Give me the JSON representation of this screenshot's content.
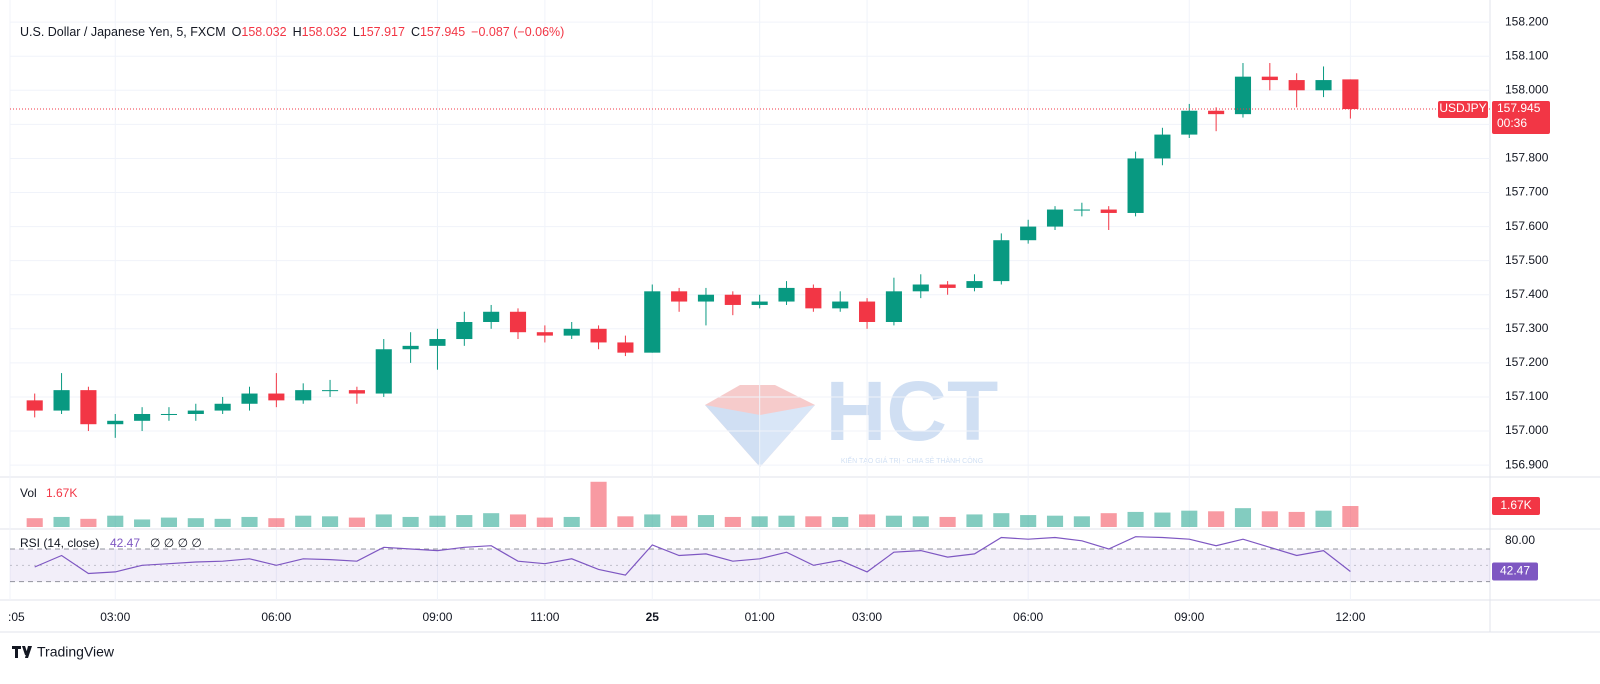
{
  "chart_data": [
    {
      "type": "candlestick",
      "title": "U.S. Dollar / Japanese Yen, 5, FXCM",
      "ohlc_legend": [
        {
          "key": "O",
          "value": "158.032"
        },
        {
          "key": "H",
          "value": "158.032"
        },
        {
          "key": "L",
          "value": "157.917"
        },
        {
          "key": "C",
          "value": "157.945"
        }
      ],
      "change": "−0.087 (−0.06%)",
      "price_label": {
        "symbol": "USDJPY",
        "price": "157.945",
        "countdown": "00:36"
      },
      "up_color": "#089981",
      "down_color": "#f23645",
      "grid": true,
      "x": [
        1.5,
        2,
        2.5,
        3,
        3.5,
        4,
        4.5,
        5,
        5.5,
        6,
        6.5,
        7,
        7.5,
        8,
        8.5,
        9,
        9.5,
        10,
        10.5,
        11,
        11.5,
        12,
        12.5,
        13,
        13.5,
        14,
        14.5,
        15,
        15.5,
        16,
        16.5,
        17,
        17.5,
        18,
        18.5,
        19,
        19.5,
        20,
        20.5,
        21,
        21.5,
        22,
        22.5,
        23,
        23.5,
        24,
        24.5,
        25,
        25.5,
        26
      ],
      "open": [
        157.09,
        157.06,
        157.12,
        157.02,
        157.03,
        157.05,
        157.05,
        157.06,
        157.08,
        157.11,
        157.09,
        157.12,
        157.12,
        157.11,
        157.24,
        157.25,
        157.27,
        157.32,
        157.35,
        157.29,
        157.28,
        157.3,
        157.26,
        157.23,
        157.41,
        157.38,
        157.4,
        157.37,
        157.38,
        157.42,
        157.36,
        157.38,
        157.32,
        157.41,
        157.43,
        157.42,
        157.44,
        157.56,
        157.6,
        157.65,
        157.65,
        157.64,
        157.8,
        157.87,
        157.94,
        157.93,
        158.04,
        158.03,
        158.0,
        158.032
      ],
      "high": [
        157.11,
        157.17,
        157.13,
        157.05,
        157.07,
        157.07,
        157.08,
        157.1,
        157.13,
        157.17,
        157.14,
        157.15,
        157.13,
        157.27,
        157.29,
        157.3,
        157.35,
        157.37,
        157.36,
        157.31,
        157.32,
        157.31,
        157.28,
        157.43,
        157.42,
        157.42,
        157.41,
        157.4,
        157.44,
        157.43,
        157.41,
        157.39,
        157.45,
        157.46,
        157.44,
        157.46,
        157.58,
        157.62,
        157.66,
        157.67,
        157.66,
        157.82,
        157.89,
        157.96,
        157.95,
        158.08,
        158.08,
        158.05,
        158.07,
        158.032
      ],
      "low": [
        157.04,
        157.05,
        157.0,
        156.98,
        157.0,
        157.03,
        157.03,
        157.05,
        157.06,
        157.07,
        157.08,
        157.1,
        157.08,
        157.1,
        157.2,
        157.18,
        157.25,
        157.3,
        157.27,
        157.26,
        157.27,
        157.24,
        157.22,
        157.23,
        157.35,
        157.31,
        157.34,
        157.36,
        157.37,
        157.35,
        157.35,
        157.3,
        157.31,
        157.39,
        157.4,
        157.41,
        157.43,
        157.55,
        157.59,
        157.63,
        157.59,
        157.63,
        157.78,
        157.86,
        157.88,
        157.92,
        158.0,
        157.95,
        157.98,
        157.917
      ],
      "close": [
        157.06,
        157.12,
        157.02,
        157.03,
        157.05,
        157.05,
        157.06,
        157.08,
        157.11,
        157.09,
        157.12,
        157.12,
        157.11,
        157.24,
        157.25,
        157.27,
        157.32,
        157.35,
        157.29,
        157.28,
        157.3,
        157.26,
        157.23,
        157.41,
        157.38,
        157.4,
        157.37,
        157.38,
        157.42,
        157.36,
        157.38,
        157.32,
        157.41,
        157.43,
        157.42,
        157.44,
        157.56,
        157.6,
        157.65,
        157.65,
        157.64,
        157.8,
        157.87,
        157.94,
        157.93,
        158.04,
        158.03,
        158.0,
        158.03,
        157.945
      ],
      "xlim": [
        1.04,
        28.6
      ],
      "xticks": [
        {
          "value": 1.04,
          "label": ":05"
        },
        {
          "value": 3,
          "label": "03:00"
        },
        {
          "value": 6,
          "label": "06:00"
        },
        {
          "value": 9,
          "label": "09:00"
        },
        {
          "value": 11,
          "label": "11:00"
        },
        {
          "value": 13,
          "label": "25"
        },
        {
          "value": 15,
          "label": "01:00"
        },
        {
          "value": 17,
          "label": "03:00"
        },
        {
          "value": 20,
          "label": "06:00"
        },
        {
          "value": 23,
          "label": "09:00"
        },
        {
          "value": 26,
          "label": "12:00"
        }
      ],
      "ylim": [
        156.868,
        158.265
      ],
      "yticks": [
        {
          "value": 156.9,
          "label": "156.900"
        },
        {
          "value": 157.0,
          "label": "157.000"
        },
        {
          "value": 157.1,
          "label": "157.100"
        },
        {
          "value": 157.2,
          "label": "157.200"
        },
        {
          "value": 157.3,
          "label": "157.300"
        },
        {
          "value": 157.4,
          "label": "157.400"
        },
        {
          "value": 157.5,
          "label": "157.500"
        },
        {
          "value": 157.6,
          "label": "157.600"
        },
        {
          "value": 157.7,
          "label": "157.700"
        },
        {
          "value": 157.8,
          "label": "157.800"
        },
        {
          "value": 157.9,
          "label": "157.900"
        },
        {
          "value": 158.0,
          "label": "158.000"
        },
        {
          "value": 158.1,
          "label": "158.100"
        },
        {
          "value": 158.2,
          "label": "158.200"
        }
      ],
      "watermark": {
        "brand": "HCT",
        "tagline": "KIẾN TẠO GIÁ TRỊ - CHIA SẺ THÀNH CÔNG"
      }
    },
    {
      "type": "volume",
      "title": "Vol",
      "values": [
        700,
        800,
        650,
        900,
        600,
        750,
        700,
        650,
        800,
        700,
        900,
        850,
        750,
        1000,
        800,
        900,
        950,
        1100,
        1000,
        750,
        800,
        3600,
        850,
        1000,
        900,
        950,
        800,
        850,
        900,
        850,
        800,
        1000,
        900,
        850,
        800,
        1000,
        1100,
        950,
        900,
        850,
        1100,
        1200,
        1150,
        1300,
        1250,
        1500,
        1250,
        1200,
        1300,
        1670
      ],
      "value_labels": {
        "49": "1.67K"
      },
      "ylim": [
        0,
        3900
      ]
    },
    {
      "type": "line",
      "title": "RSI (14, close)",
      "legend_extra": "∅ ∅ ∅ ∅",
      "color": "#7e57c2",
      "values": [
        48,
        62,
        40,
        42,
        50,
        52,
        54,
        55,
        58,
        50,
        58,
        57,
        55,
        72,
        70,
        68,
        72,
        74,
        55,
        52,
        58,
        45,
        38,
        75,
        62,
        64,
        55,
        58,
        66,
        50,
        56,
        42,
        66,
        68,
        60,
        64,
        84,
        82,
        84,
        80,
        70,
        85,
        84,
        82,
        74,
        82,
        72,
        62,
        68,
        42.47
      ],
      "bands": [
        30,
        50,
        70
      ],
      "ylim": [
        10,
        92
      ],
      "yticks": [
        {
          "value": 80,
          "label": "80.00"
        }
      ]
    }
  ],
  "footer": {
    "brand": "TradingView"
  }
}
